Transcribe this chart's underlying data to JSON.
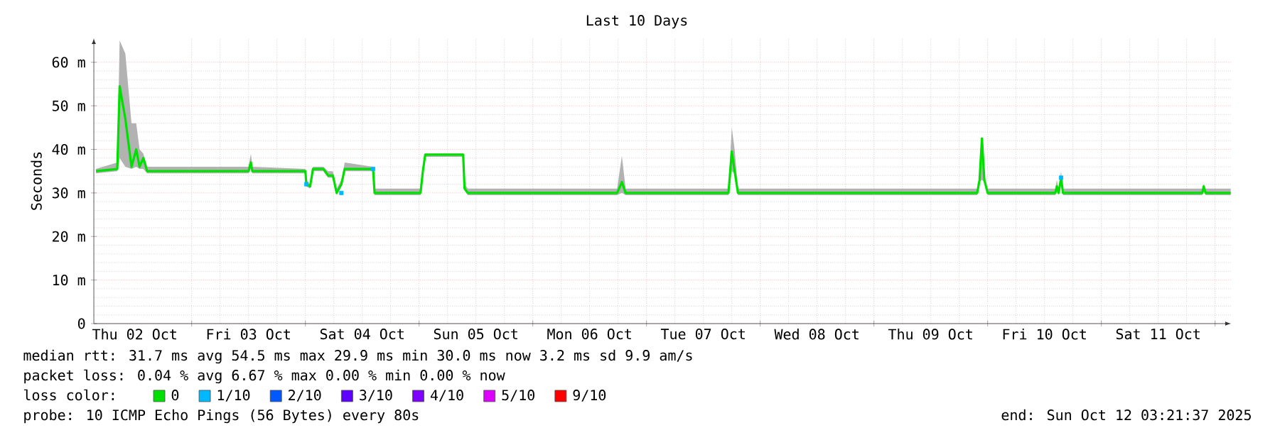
{
  "chart_data": {
    "type": "line",
    "title": "Last 10 Days",
    "ylabel": "Seconds",
    "xlim": [
      "2025-10-02T03:21",
      "2025-10-12T03:21"
    ],
    "xticks": [
      {
        "value": "2025-10-02T12:00",
        "label": "Thu 02 Oct"
      },
      {
        "value": "2025-10-03T00:00",
        "label": null
      },
      {
        "value": "2025-10-03T12:00",
        "label": "Fri 03 Oct"
      },
      {
        "value": "2025-10-04T00:00",
        "label": null
      },
      {
        "value": "2025-10-04T12:00",
        "label": "Sat 04 Oct"
      },
      {
        "value": "2025-10-05T00:00",
        "label": null
      },
      {
        "value": "2025-10-05T12:00",
        "label": "Sun 05 Oct"
      },
      {
        "value": "2025-10-06T00:00",
        "label": null
      },
      {
        "value": "2025-10-06T12:00",
        "label": "Mon 06 Oct"
      },
      {
        "value": "2025-10-07T00:00",
        "label": null
      },
      {
        "value": "2025-10-07T12:00",
        "label": "Tue 07 Oct"
      },
      {
        "value": "2025-10-08T00:00",
        "label": null
      },
      {
        "value": "2025-10-08T12:00",
        "label": "Wed 08 Oct"
      },
      {
        "value": "2025-10-09T00:00",
        "label": null
      },
      {
        "value": "2025-10-09T12:00",
        "label": "Thu 09 Oct"
      },
      {
        "value": "2025-10-10T00:00",
        "label": null
      },
      {
        "value": "2025-10-10T12:00",
        "label": "Fri 10 Oct"
      },
      {
        "value": "2025-10-11T00:00",
        "label": null
      },
      {
        "value": "2025-10-11T12:00",
        "label": "Sat 11 Oct"
      },
      {
        "value": "2025-10-12T00:00",
        "label": null
      }
    ],
    "ylim": [
      0,
      65.5
    ],
    "yticks": [
      0,
      {
        "value": 10,
        "label": "10 m"
      },
      {
        "value": 20,
        "label": "20 m"
      },
      {
        "value": 30,
        "label": "30 m"
      },
      {
        "value": 40,
        "label": "40 m"
      },
      {
        "value": 50,
        "label": "50 m"
      },
      {
        "value": 60,
        "label": "60 m"
      }
    ],
    "grid": true,
    "legend": "bottom",
    "legend_title": "loss color:",
    "series": [
      {
        "name": "0",
        "color": "#00e000",
        "x": [
          "2025-10-02T03:48",
          "2025-10-02T08:18",
          "2025-10-02T08:48",
          "2025-10-02T10:00",
          "2025-10-02T11:18",
          "2025-10-02T12:18",
          "2025-10-02T13:00",
          "2025-10-02T13:48",
          "2025-10-02T14:36",
          "2025-10-03T12:00",
          "2025-10-03T12:30",
          "2025-10-03T12:48",
          "2025-10-04T00:00",
          "2025-10-04T00:12",
          "2025-10-04T01:00",
          "2025-10-04T01:36",
          "2025-10-04T03:48",
          "2025-10-04T04:48",
          "2025-10-04T05:48",
          "2025-10-04T06:36",
          "2025-10-04T07:36",
          "2025-10-04T08:18",
          "2025-10-04T14:18",
          "2025-10-04T14:36",
          "2025-10-05T00:18",
          "2025-10-05T00:48",
          "2025-10-05T01:18",
          "2025-10-05T09:18",
          "2025-10-05T09:36",
          "2025-10-05T10:18",
          "2025-10-06T17:48",
          "2025-10-06T18:48",
          "2025-10-06T19:36",
          "2025-10-07T17:18",
          "2025-10-07T18:00",
          "2025-10-07T18:36",
          "2025-10-07T19:18",
          "2025-10-09T21:48",
          "2025-10-09T22:18",
          "2025-10-09T22:48",
          "2025-10-09T23:18",
          "2025-10-10T00:00",
          "2025-10-10T14:18",
          "2025-10-10T14:36",
          "2025-10-10T15:00",
          "2025-10-10T15:30",
          "2025-10-10T15:54",
          "2025-10-11T21:18",
          "2025-10-11T21:36",
          "2025-10-11T22:00",
          "2025-10-12T03:18"
        ],
        "values": [
          35,
          35.5,
          54.5,
          47,
          36,
          40,
          36,
          38,
          35,
          35,
          37,
          35,
          35,
          32,
          31.5,
          35.5,
          35.5,
          34,
          34,
          30,
          32,
          35.5,
          35.5,
          30,
          30,
          35,
          38.8,
          38.8,
          31,
          30,
          30,
          32.5,
          30,
          30,
          39.5,
          35,
          30,
          30,
          33,
          42.5,
          33,
          30,
          30,
          31.5,
          30,
          33.5,
          30,
          30,
          31.5,
          30,
          30
        ],
        "lower": [
          34.5,
          35,
          38,
          36,
          35.5,
          36,
          35.5,
          35.5,
          34.5,
          34.5,
          35.5,
          34.5,
          34.5,
          31.5,
          31,
          35,
          35,
          33.5,
          33.5,
          29.5,
          31.5,
          35,
          35,
          29.5,
          29.5,
          34.5,
          38.3,
          38.3,
          30.5,
          29.5,
          29.5,
          30,
          29.5,
          29.5,
          35,
          34.5,
          29.5,
          29.5,
          32.5,
          33,
          32.5,
          29.5,
          29.5,
          31,
          29.5,
          33,
          29.5,
          29.5,
          31,
          29.5,
          29.5
        ],
        "upper": [
          35.5,
          37,
          65,
          62,
          46,
          46,
          40,
          39,
          36,
          36,
          39,
          36,
          35.5,
          33,
          32,
          36,
          36,
          35,
          35,
          31,
          33,
          37,
          36,
          31,
          31,
          36,
          39,
          39,
          32,
          31,
          31,
          38.5,
          31,
          31,
          45,
          40,
          31,
          31,
          34,
          43,
          34,
          31,
          31,
          33,
          31,
          35,
          31,
          31,
          32,
          31,
          31
        ]
      },
      {
        "name": "1/10",
        "type": "scatter",
        "color": "#00b8ff",
        "x": [
          "2025-10-04T00:12",
          "2025-10-04T07:36",
          "2025-10-04T14:18",
          "2025-10-10T15:30"
        ],
        "values": [
          32,
          30,
          35.5,
          33.5
        ]
      },
      {
        "name": "2/10",
        "type": "scatter",
        "color": "#0059ff"
      },
      {
        "name": "3/10",
        "type": "scatter",
        "color": "#5e00ff"
      },
      {
        "name": "4/10",
        "type": "scatter",
        "color": "#7e00ff"
      },
      {
        "name": "5/10",
        "type": "scatter",
        "color": "#dd00ff"
      },
      {
        "name": "9/10",
        "type": "scatter",
        "color": "#ff0000"
      }
    ],
    "annotations": [
      "median rtt: 31.7 ms avg 54.5 ms max 29.9 ms min 30.0 ms now 3.2 ms sd 9.9 am/s",
      "packet loss: 0.04 % avg 6.67 % max 0.00 % min 0.00 % now",
      "probe: 10 ICMP Echo Pings (56 Bytes) every 80s",
      "end: Sun Oct 12 03:21:37 2025"
    ]
  }
}
